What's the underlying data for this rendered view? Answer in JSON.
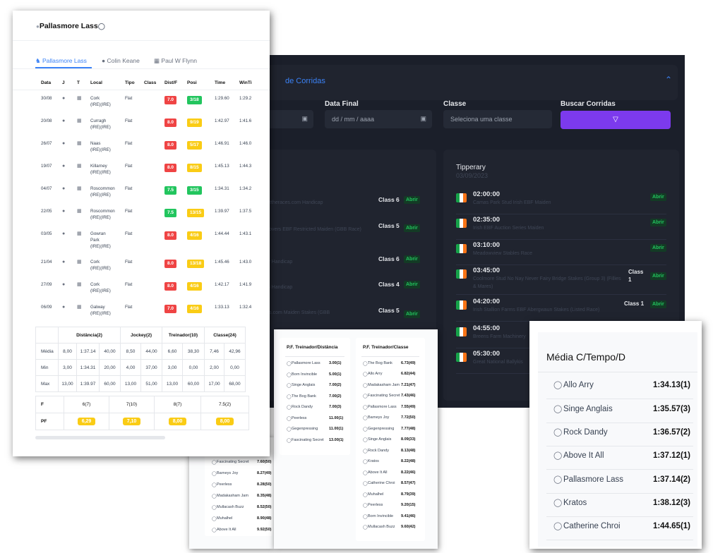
{
  "dark_panel": {
    "header_title": "de Corridas",
    "filters": {
      "data_final_label": "Data Final",
      "data_final_placeholder": "dd / mm / aaaa",
      "classe_label": "Classe",
      "classe_placeholder": "Seleciona uma classe",
      "buscar_label": "Buscar Corridas"
    },
    "left_card_races": [
      {
        "name": "Tips On attheraces.com Handicap",
        "class": "Class 6",
        "action": "Abrir"
      },
      {
        "name": "Market Movers EBF Restricted Maiden (GBB Race)",
        "class": "Class 5",
        "action": "Abrir"
      },
      {
        "name": "rt Nursery Handicap",
        "class": "Class 6",
        "action": "Abrir"
      },
      {
        "name": "y Sky 415 Handicap",
        "class": "Class 4",
        "action": "Abrir"
      },
      {
        "name": "attheraces.com Maiden Stakes (GBB",
        "class": "Class 5",
        "action": "Abrir"
      }
    ],
    "tipperary": {
      "title": "Tipperary",
      "date": "03/09/2023",
      "races": [
        {
          "time": "02:00:00",
          "name": "Camas Park Stud Irish EBF Maiden",
          "class": "",
          "action": "Abrir"
        },
        {
          "time": "02:35:00",
          "name": "Irish EBF Auction Series Maiden",
          "class": "",
          "action": "Abrir"
        },
        {
          "time": "03:10:00",
          "name": "Meadowview Stables Race",
          "class": "",
          "action": "Abrir"
        },
        {
          "time": "03:45:00",
          "name": "Coolmore Stud No Nay Never Fairy Bridge Stakes (Group 3) (Fillies & Mares)",
          "class": "Class 1",
          "action": "Abrir"
        },
        {
          "time": "04:20:00",
          "name": "Irish Stallion Farms EBF Abergwaun Stakes (Listed Race)",
          "class": "Class 1",
          "action": "Abrir"
        },
        {
          "time": "04:55:00",
          "name": "Breens Farm Machinery",
          "class": "",
          "action": ""
        },
        {
          "time": "05:30:00",
          "name": "Great National Ballykis",
          "class": "",
          "action": ""
        }
      ]
    }
  },
  "horse_panel": {
    "title": "Pallasmore Lass",
    "tabs": [
      "Pallasmore Lass",
      "Colin Keane",
      "Paul W Flynn"
    ],
    "columns": [
      "Data",
      "J",
      "T",
      "Local",
      "Tipo",
      "Class",
      "Dist/F",
      "Posi",
      "Time",
      "WinTi"
    ],
    "rows": [
      {
        "data": "30/08",
        "local": [
          "Cork",
          "(IRE)(IRE)"
        ],
        "tipo": "Flat",
        "dist": "7.0",
        "dist_color": "red",
        "posi": "3/18",
        "posi_color": "green",
        "time": "1:29.60",
        "winti": "1:29.2"
      },
      {
        "data": "20/08",
        "local": [
          "Curragh",
          "(IRE)(IRE)"
        ],
        "tipo": "Flat",
        "dist": "8.0",
        "dist_color": "red",
        "posi": "9/19",
        "posi_color": "yellow",
        "time": "1:42.97",
        "winti": "1:41.6"
      },
      {
        "data": "26/07",
        "local": [
          "Naas",
          "(IRE)(IRE)"
        ],
        "tipo": "Flat",
        "dist": "8.0",
        "dist_color": "red",
        "posi": "5/17",
        "posi_color": "yellow",
        "time": "1:46.91",
        "winti": "1:46.0"
      },
      {
        "data": "19/07",
        "local": [
          "Killarney",
          "(IRE)(IRE)"
        ],
        "tipo": "Flat",
        "dist": "8.0",
        "dist_color": "red",
        "posi": "8/15",
        "posi_color": "yellow",
        "time": "1:45.13",
        "winti": "1:44.3"
      },
      {
        "data": "04/07",
        "local": [
          "Roscommon",
          "(IRE)(IRE)"
        ],
        "tipo": "Flat",
        "dist": "7.5",
        "dist_color": "green",
        "posi": "3/15",
        "posi_color": "green",
        "time": "1:34.31",
        "winti": "1:34.2"
      },
      {
        "data": "22/05",
        "local": [
          "Roscommon",
          "(IRE)(IRE)"
        ],
        "tipo": "Flat",
        "dist": "7.5",
        "dist_color": "green",
        "posi": "13/15",
        "posi_color": "yellow",
        "time": "1:39.97",
        "winti": "1:37.5"
      },
      {
        "data": "03/05",
        "local": [
          "Gowran",
          "Park",
          "(IRE)(IRE)"
        ],
        "tipo": "Flat",
        "dist": "8.0",
        "dist_color": "red",
        "posi": "4/16",
        "posi_color": "yellow",
        "time": "1:44.44",
        "winti": "1:43.1"
      },
      {
        "data": "21/04",
        "local": [
          "Cork",
          "(IRE)(IRE)"
        ],
        "tipo": "Flat",
        "dist": "8.0",
        "dist_color": "red",
        "posi": "13/18",
        "posi_color": "yellow",
        "time": "1:45.46",
        "winti": "1:43.0"
      },
      {
        "data": "27/09",
        "local": [
          "Cork",
          "(IRE)(IRE)"
        ],
        "tipo": "Flat",
        "dist": "8.0",
        "dist_color": "red",
        "posi": "4/16",
        "posi_color": "yellow",
        "time": "1:42.17",
        "winti": "1:41.9"
      },
      {
        "data": "06/09",
        "local": [
          "Galway",
          "(IRE)(IRE)"
        ],
        "tipo": "Flat",
        "dist": "7.0",
        "dist_color": "red",
        "posi": "4/16",
        "posi_color": "yellow",
        "time": "1:33.13",
        "winti": "1:32.4"
      }
    ],
    "stats": {
      "headers": [
        "Distância(2)",
        "Jockey(2)",
        "Treinador(10)",
        "Classe(24)"
      ],
      "rows": [
        {
          "label": "Média",
          "values": [
            "8,00",
            "1:37.14",
            "40,00",
            "8,50",
            "44,00",
            "6,60",
            "38,30",
            "7,46",
            "42,96"
          ]
        },
        {
          "label": "Min",
          "values": [
            "3,00",
            "1:34.31",
            "20,00",
            "4,00",
            "37,00",
            "3,00",
            "0,00",
            "2,00",
            "0,00"
          ]
        },
        {
          "label": "Max",
          "values": [
            "13,00",
            "1:39.97",
            "60,00",
            "13,00",
            "51,00",
            "13,00",
            "60,00",
            "17,00",
            "68,00"
          ]
        }
      ]
    },
    "pf": {
      "row1_label": "F",
      "row1_values": [
        "6(7)",
        "7(10)",
        "8(7)",
        "7.5(2)"
      ],
      "row2_label": "PF",
      "row2_values": [
        "6,29",
        "7,10",
        "8,00",
        "8,00"
      ]
    }
  },
  "mid_panels": {
    "under_rows": [
      {
        "name": "Fascinating Secret",
        "value": "7.60(50)"
      },
      {
        "name": "Barneys Joy",
        "value": "8.27(49)"
      },
      {
        "name": "Peerless",
        "value": "8.28(50)"
      },
      {
        "name": "Madakasham Jam",
        "value": "8.35(48)"
      },
      {
        "name": "Mullacash Buzz",
        "value": "8.52(50)"
      },
      {
        "name": "Muhalhel",
        "value": "8.90(48)"
      },
      {
        "name": "Above It All",
        "value": "9.92(50)"
      }
    ],
    "treinador_distancia": {
      "title": "P.F. Treinador/Distância",
      "rows": [
        {
          "name": "Pallasmore Lass",
          "value": "3.00(1)"
        },
        {
          "name": "Born Invincible",
          "value": "5.00(1)"
        },
        {
          "name": "Singe Anglais",
          "value": "7.00(2)"
        },
        {
          "name": "The Bog Bank",
          "value": "7.00(2)"
        },
        {
          "name": "Rock Dandy",
          "value": "7.00(3)"
        },
        {
          "name": "Peerless",
          "value": "11.00(1)"
        },
        {
          "name": "Gegenpressing",
          "value": "11.00(1)"
        },
        {
          "name": "Fascinating Secret",
          "value": "13.00(1)"
        }
      ]
    },
    "treinador_classe": {
      "title": "P.F. Treinador/Classe",
      "rows": [
        {
          "name": "The Bog Bank",
          "value": "6.73(49)"
        },
        {
          "name": "Allo Arry",
          "value": "6.82(44)"
        },
        {
          "name": "Madakasham Jam",
          "value": "7.21(47)"
        },
        {
          "name": "Fascinating Secret",
          "value": "7.43(46)"
        },
        {
          "name": "Pallasmore Lass",
          "value": "7.55(49)"
        },
        {
          "name": "Barneys Joy",
          "value": "7.72(50)"
        },
        {
          "name": "Gegenpressing",
          "value": "7.77(48)"
        },
        {
          "name": "Singe Anglais",
          "value": "8.09(33)"
        },
        {
          "name": "Rock Dandy",
          "value": "8.13(48)"
        },
        {
          "name": "Kratos",
          "value": "8.22(48)"
        },
        {
          "name": "Above It All",
          "value": "8.22(46)"
        },
        {
          "name": "Catherine Chroi",
          "value": "8.57(47)"
        },
        {
          "name": "Muhalhel",
          "value": "8.79(39)"
        },
        {
          "name": "Peerless",
          "value": "9.20(15)"
        },
        {
          "name": "Born Invincible",
          "value": "9.41(46)"
        },
        {
          "name": "Mullacash Buzz",
          "value": "9.60(42)"
        }
      ]
    }
  },
  "right_panel": {
    "title": "Média C/Tempo/D",
    "rows": [
      {
        "name": "Allo Arry",
        "value": "1:34.13(1)"
      },
      {
        "name": "Singe Anglais",
        "value": "1:35.57(3)"
      },
      {
        "name": "Rock Dandy",
        "value": "1:36.57(2)"
      },
      {
        "name": "Above It All",
        "value": "1:37.12(1)"
      },
      {
        "name": "Pallasmore Lass",
        "value": "1:37.14(2)"
      },
      {
        "name": "Kratos",
        "value": "1:38.12(3)"
      },
      {
        "name": "Catherine Chroi",
        "value": "1:44.65(1)"
      }
    ]
  },
  "colors": {
    "accent": "#3b82f6",
    "button": "#7c3aed",
    "dark_bg": "#1b1f2a",
    "pill_red": "#ef4444",
    "pill_green": "#22c55e",
    "pill_yellow": "#facc15"
  }
}
